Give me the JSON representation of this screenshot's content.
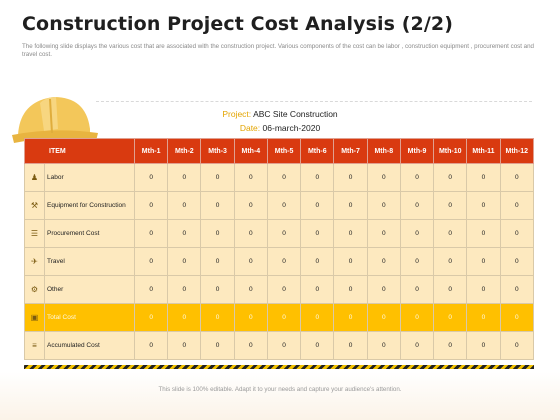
{
  "title": "Construction Project Cost Analysis (2/2)",
  "subtitle": "The following slide displays the various cost that are associated with the construction project. Various components of the cost can be labor , construction equipment , procurement cost and travel cost.",
  "project": {
    "label": "Project:",
    "value": "ABC Site Construction"
  },
  "date": {
    "label": "Date:",
    "value": "06-march-2020"
  },
  "table": {
    "item_header": "ITEM",
    "months": [
      "Mth-1",
      "Mth-2",
      "Mth-3",
      "Mth-4",
      "Mth-5",
      "Mth-6",
      "Mth-7",
      "Mth-8",
      "Mth-9",
      "Mth-10",
      "Mth-11",
      "Mth-12"
    ],
    "rows": [
      {
        "icon": "worker-icon",
        "name": "Labor",
        "values": [
          "0",
          "0",
          "0",
          "0",
          "0",
          "0",
          "0",
          "0",
          "0",
          "0",
          "0",
          "0"
        ]
      },
      {
        "icon": "equipment-icon",
        "name": "Equipment for Construction",
        "values": [
          "0",
          "0",
          "0",
          "0",
          "0",
          "0",
          "0",
          "0",
          "0",
          "0",
          "0",
          "0"
        ]
      },
      {
        "icon": "procurement-icon",
        "name": "Procurement Cost",
        "values": [
          "0",
          "0",
          "0",
          "0",
          "0",
          "0",
          "0",
          "0",
          "0",
          "0",
          "0",
          "0"
        ]
      },
      {
        "icon": "travel-icon",
        "name": "Travel",
        "values": [
          "0",
          "0",
          "0",
          "0",
          "0",
          "0",
          "0",
          "0",
          "0",
          "0",
          "0",
          "0"
        ]
      },
      {
        "icon": "other-icon",
        "name": "Other",
        "values": [
          "0",
          "0",
          "0",
          "0",
          "0",
          "0",
          "0",
          "0",
          "0",
          "0",
          "0",
          "0"
        ]
      },
      {
        "icon": "total-icon",
        "name": "Total Cost",
        "values": [
          "0",
          "0",
          "0",
          "0",
          "0",
          "0",
          "0",
          "0",
          "0",
          "0",
          "0",
          "0"
        ],
        "highlight": true
      },
      {
        "icon": "accumulated-icon",
        "name": "Accumulated Cost",
        "values": [
          "0",
          "0",
          "0",
          "0",
          "0",
          "0",
          "0",
          "0",
          "0",
          "0",
          "0",
          "0"
        ]
      }
    ]
  },
  "footer": "This slide is 100% editable. Adapt it to your needs and capture your audience's attention.",
  "colors": {
    "header": "#d93a10",
    "row": "#fde9bf",
    "total": "#ffc000",
    "accent": "#e3a400"
  }
}
